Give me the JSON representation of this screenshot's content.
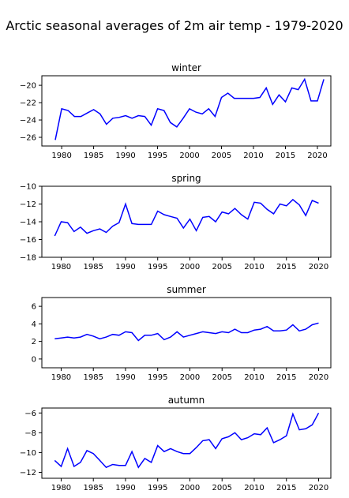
{
  "figure": {
    "suptitle": "Arctic seasonal averages of 2m air temp - 1979-2020"
  },
  "chart_data": [
    {
      "type": "line",
      "title": "winter",
      "xlim": [
        1976.9,
        2022.1
      ],
      "ylim": [
        -27.0,
        -18.9
      ],
      "xticks": [
        1980,
        1985,
        1990,
        1995,
        2000,
        2005,
        2010,
        2015,
        2020
      ],
      "yticks": [
        -26,
        -24,
        -22,
        -20
      ],
      "color": "#0000ff",
      "x": [
        1979,
        1980,
        1981,
        1982,
        1983,
        1984,
        1985,
        1986,
        1987,
        1988,
        1989,
        1990,
        1991,
        1992,
        1993,
        1994,
        1995,
        1996,
        1997,
        1998,
        1999,
        2000,
        2001,
        2002,
        2003,
        2004,
        2005,
        2006,
        2007,
        2008,
        2009,
        2010,
        2011,
        2012,
        2013,
        2014,
        2015,
        2016,
        2017,
        2018,
        2019,
        2020,
        2021
      ],
      "values": [
        -26.3,
        -22.7,
        -22.9,
        -23.6,
        -23.6,
        -23.2,
        -22.8,
        -23.3,
        -24.5,
        -23.8,
        -23.7,
        -23.5,
        -23.8,
        -23.5,
        -23.6,
        -24.6,
        -22.7,
        -22.9,
        -24.3,
        -24.8,
        -23.8,
        -22.7,
        -23.1,
        -23.3,
        -22.7,
        -23.6,
        -21.4,
        -20.9,
        -21.5,
        -21.5,
        -21.5,
        -21.5,
        -21.4,
        -20.3,
        -22.2,
        -21.1,
        -21.9,
        -20.3,
        -20.5,
        -19.3,
        -21.8,
        -21.8,
        -19.3
      ]
    },
    {
      "type": "line",
      "title": "spring",
      "xlim": [
        1977.0,
        2021.9
      ],
      "ylim": [
        -18,
        -10
      ],
      "xticks": [
        1980,
        1985,
        1990,
        1995,
        2000,
        2005,
        2010,
        2015,
        2020
      ],
      "yticks": [
        -18,
        -16,
        -14,
        -12,
        -10
      ],
      "color": "#0000ff",
      "x": [
        1979,
        1980,
        1981,
        1982,
        1983,
        1984,
        1985,
        1986,
        1987,
        1988,
        1989,
        1990,
        1991,
        1992,
        1993,
        1994,
        1995,
        1996,
        1997,
        1998,
        1999,
        2000,
        2001,
        2002,
        2003,
        2004,
        2005,
        2006,
        2007,
        2008,
        2009,
        2010,
        2011,
        2012,
        2013,
        2014,
        2015,
        2016,
        2017,
        2018,
        2019,
        2020
      ],
      "values": [
        -15.6,
        -14.0,
        -14.1,
        -15.1,
        -14.6,
        -15.3,
        -15.0,
        -14.8,
        -15.2,
        -14.5,
        -14.1,
        -12.0,
        -14.2,
        -14.3,
        -14.3,
        -14.3,
        -12.8,
        -13.2,
        -13.4,
        -13.6,
        -14.7,
        -13.7,
        -15.0,
        -13.5,
        -13.4,
        -14.0,
        -12.9,
        -13.1,
        -12.5,
        -13.2,
        -13.7,
        -11.8,
        -11.9,
        -12.6,
        -13.1,
        -12.0,
        -12.2,
        -11.5,
        -12.1,
        -13.3,
        -11.6,
        -11.9
      ]
    },
    {
      "type": "line",
      "title": "summer",
      "xlim": [
        1977.0,
        2021.9
      ],
      "ylim": [
        -1,
        7
      ],
      "xticks": [
        1980,
        1985,
        1990,
        1995,
        2000,
        2005,
        2010,
        2015,
        2020
      ],
      "yticks": [
        0,
        2,
        4,
        6
      ],
      "color": "#0000ff",
      "x": [
        1979,
        1980,
        1981,
        1982,
        1983,
        1984,
        1985,
        1986,
        1987,
        1988,
        1989,
        1990,
        1991,
        1992,
        1993,
        1994,
        1995,
        1996,
        1997,
        1998,
        1999,
        2000,
        2001,
        2002,
        2003,
        2004,
        2005,
        2006,
        2007,
        2008,
        2009,
        2010,
        2011,
        2012,
        2013,
        2014,
        2015,
        2016,
        2017,
        2018,
        2019,
        2020
      ],
      "values": [
        2.3,
        2.4,
        2.5,
        2.4,
        2.5,
        2.8,
        2.6,
        2.3,
        2.5,
        2.8,
        2.7,
        3.1,
        3.0,
        2.1,
        2.7,
        2.7,
        2.9,
        2.2,
        2.5,
        3.1,
        2.5,
        2.7,
        2.9,
        3.1,
        3.0,
        2.9,
        3.1,
        3.0,
        3.4,
        3.0,
        3.0,
        3.3,
        3.4,
        3.7,
        3.2,
        3.2,
        3.3,
        3.9,
        3.2,
        3.4,
        3.9,
        4.1
      ]
    },
    {
      "type": "line",
      "title": "autumn",
      "xlim": [
        1977.0,
        2021.9
      ],
      "ylim": [
        -12.6,
        -5.5
      ],
      "xticks": [
        1980,
        1985,
        1990,
        1995,
        2000,
        2005,
        2010,
        2015,
        2020
      ],
      "yticks": [
        -12,
        -10,
        -8,
        -6
      ],
      "color": "#0000ff",
      "x": [
        1979,
        1980,
        1981,
        1982,
        1983,
        1984,
        1985,
        1986,
        1987,
        1988,
        1989,
        1990,
        1991,
        1992,
        1993,
        1994,
        1995,
        1996,
        1997,
        1998,
        1999,
        2000,
        2001,
        2002,
        2003,
        2004,
        2005,
        2006,
        2007,
        2008,
        2009,
        2010,
        2011,
        2012,
        2013,
        2014,
        2015,
        2016,
        2017,
        2018,
        2019,
        2020
      ],
      "values": [
        -10.8,
        -11.4,
        -9.6,
        -11.4,
        -11.0,
        -9.8,
        -10.1,
        -10.8,
        -11.5,
        -11.2,
        -11.3,
        -11.3,
        -9.9,
        -11.5,
        -10.6,
        -11.0,
        -9.3,
        -9.9,
        -9.6,
        -9.9,
        -10.1,
        -10.1,
        -9.5,
        -8.8,
        -8.7,
        -9.6,
        -8.6,
        -8.4,
        -8.0,
        -8.7,
        -8.5,
        -8.1,
        -8.2,
        -7.5,
        -9.0,
        -8.7,
        -8.3,
        -6.1,
        -7.7,
        -7.6,
        -7.2,
        -6.0
      ]
    }
  ]
}
